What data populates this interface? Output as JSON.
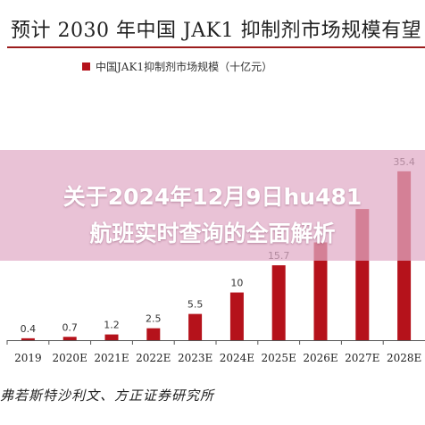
{
  "title": "预计 2030 年中国 JAK1 抑制剂市场规模有望",
  "source": "弗若斯特沙利文、方正证券研究所",
  "overlay": {
    "line1": "关于2024年12月9日hu481",
    "line2": "航班实时查询的全面解析"
  },
  "colors": {
    "bar": "#b5121b",
    "accent": "#9b1c1c"
  },
  "chart_data": {
    "type": "bar",
    "categories": [
      "2019",
      "2020E",
      "2021E",
      "2022E",
      "2023E",
      "2024E",
      "2025E",
      "2026E",
      "2027E",
      "2028E"
    ],
    "series": [
      {
        "name": "中国JAK1抑制剂市场规模（十亿元）",
        "values": [
          0.4,
          0.7,
          1.2,
          2.5,
          5.5,
          10,
          15.7,
          20.5,
          27.5,
          35.4
        ]
      }
    ],
    "value_labels": [
      "0.4",
      "0.7",
      "1.2",
      "2.5",
      "5.5",
      "10",
      "15.7",
      "",
      "",
      "35.4"
    ],
    "ylim": [
      0,
      38
    ],
    "grid": false,
    "legend": "top-left"
  }
}
